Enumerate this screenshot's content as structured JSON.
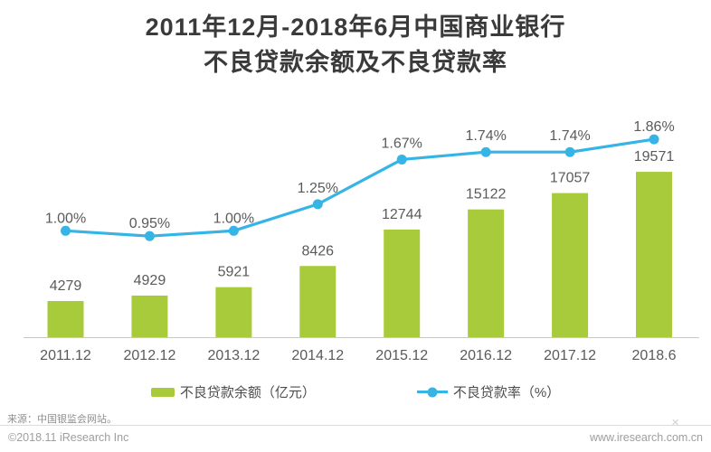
{
  "title": {
    "line1": "2011年12月-2018年6月中国商业银行",
    "line2": "不良贷款余额及不良贷款率"
  },
  "legend": {
    "bar_label": "不良贷款余额（亿元）",
    "line_label": "不良贷款率（%）"
  },
  "footer": {
    "source": "来源：中国银监会网站。",
    "copyright": "©2018.11 iResearch Inc",
    "website": "www.iresearch.com.cn",
    "divider_mark": "✕"
  },
  "colors": {
    "bar": "#a8cb3b",
    "line": "#35b4e5",
    "label": "#5a5a5a",
    "axis": "#c8c8c8",
    "title": "#3a3a3a"
  },
  "chart_data": {
    "type": "bar",
    "subtype": "bar+line combo",
    "title": "2011年12月-2018年6月中国商业银行不良贷款余额及不良贷款率",
    "categories": [
      "2011.12",
      "2012.12",
      "2013.12",
      "2014.12",
      "2015.12",
      "2016.12",
      "2017.12",
      "2018.6"
    ],
    "series": [
      {
        "name": "不良贷款余额（亿元）",
        "type": "bar",
        "color": "#a8cb3b",
        "values": [
          4279,
          4929,
          5921,
          8426,
          12744,
          15122,
          17057,
          19571
        ],
        "value_labels": [
          "4279",
          "4929",
          "5921",
          "8426",
          "12744",
          "15122",
          "17057",
          "19571"
        ]
      },
      {
        "name": "不良贷款率（%）",
        "type": "line",
        "color": "#35b4e5",
        "values": [
          1.0,
          0.95,
          1.0,
          1.25,
          1.67,
          1.74,
          1.74,
          1.86
        ],
        "value_labels": [
          "1.00%",
          "0.95%",
          "1.00%",
          "1.25%",
          "1.67%",
          "1.74%",
          "1.74%",
          "1.86%"
        ]
      }
    ],
    "xlabel": "",
    "ylabel": "",
    "grid": false,
    "legend_position": "bottom",
    "bar_axis_range": [
      0,
      21000
    ],
    "line_axis_range": [
      0,
      2.0
    ]
  }
}
